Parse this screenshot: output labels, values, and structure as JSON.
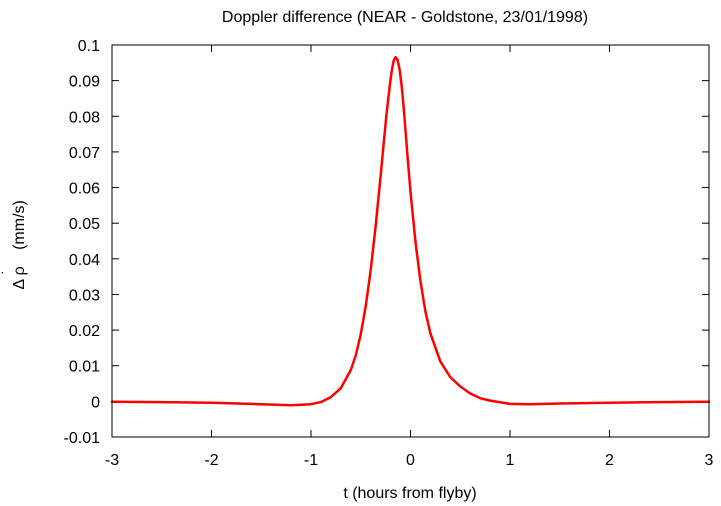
{
  "chart_data": {
    "type": "line",
    "title": "Doppler difference (NEAR - Goldstone, 23/01/1998)",
    "xlabel": "t (hours from flyby)",
    "ylabel_symbol": "Δ ρ",
    "ylabel_dot": "˙",
    "ylabel_unit": "(mm/s)",
    "xlim": [
      -3,
      3
    ],
    "ylim": [
      -0.01,
      0.1
    ],
    "xticks": [
      -3,
      -2,
      -1,
      0,
      1,
      2,
      3
    ],
    "xtick_labels": [
      "-3",
      "-2",
      "-1",
      "0",
      "1",
      "2",
      "3"
    ],
    "yticks": [
      -0.01,
      0,
      0.01,
      0.02,
      0.03,
      0.04,
      0.05,
      0.06,
      0.07,
      0.08,
      0.09,
      0.1
    ],
    "ytick_labels": [
      "-0.01",
      "0",
      "0.01",
      "0.02",
      "0.03",
      "0.04",
      "0.05",
      "0.06",
      "0.07",
      "0.08",
      "0.09",
      "0.1"
    ],
    "grid": false,
    "series": [
      {
        "color": "#ff0000",
        "x": [
          -3.0,
          -2.5,
          -2.0,
          -1.5,
          -1.2,
          -1.0,
          -0.9,
          -0.8,
          -0.7,
          -0.6,
          -0.55,
          -0.5,
          -0.45,
          -0.4,
          -0.35,
          -0.3,
          -0.27,
          -0.24,
          -0.21,
          -0.19,
          -0.17,
          -0.15,
          -0.13,
          -0.11,
          -0.09,
          -0.07,
          -0.05,
          -0.03,
          0.0,
          0.05,
          0.1,
          0.15,
          0.2,
          0.3,
          0.4,
          0.5,
          0.6,
          0.7,
          0.8,
          1.0,
          1.2,
          1.5,
          2.0,
          2.5,
          3.0
        ],
        "y": [
          -0.0001,
          -0.0002,
          -0.0004,
          -0.0008,
          -0.0011,
          -0.0008,
          -0.0002,
          0.0012,
          0.0037,
          0.0088,
          0.0129,
          0.0188,
          0.0267,
          0.0368,
          0.0493,
          0.0633,
          0.0722,
          0.0809,
          0.0882,
          0.0925,
          0.0955,
          0.0966,
          0.0958,
          0.0932,
          0.0888,
          0.0829,
          0.076,
          0.0688,
          0.0588,
          0.0448,
          0.0337,
          0.0252,
          0.0191,
          0.0112,
          0.0068,
          0.0042,
          0.0022,
          0.0009,
          0.0002,
          -0.0007,
          -0.0008,
          -0.0006,
          -0.0004,
          -0.0002,
          -0.0001
        ]
      }
    ]
  }
}
